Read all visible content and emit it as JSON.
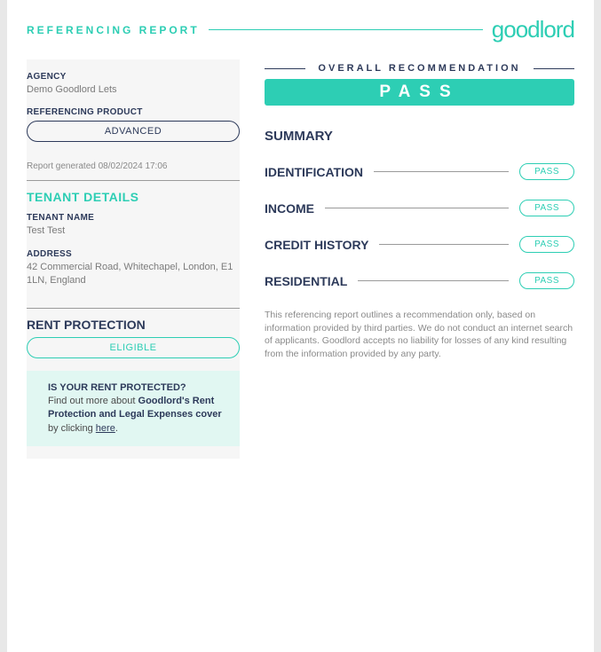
{
  "header": {
    "title": "REFERENCING REPORT",
    "logo": "goodlord"
  },
  "colors": {
    "accent": "#2dceb4",
    "dark": "#2d3a5a",
    "muted": "#8a8a8a",
    "bg_left": "#f6f6f6",
    "info_bg": "#e1f7f2"
  },
  "left": {
    "agency": {
      "label": "AGENCY",
      "value": "Demo Goodlord Lets"
    },
    "product": {
      "label": "REFERENCING PRODUCT",
      "value": "ADVANCED"
    },
    "generated": "Report generated 08/02/2024 17:06",
    "tenant_section": "TENANT DETAILS",
    "tenant_name": {
      "label": "TENANT NAME",
      "value": "Test Test"
    },
    "address": {
      "label": "ADDRESS",
      "value": "42 Commercial Road, Whitechapel, London, E1 1LN, England"
    },
    "rent_protection": {
      "title": "RENT PROTECTION",
      "status": "ELIGIBLE"
    },
    "info": {
      "question": "IS YOUR RENT PROTECTED?",
      "line1": "Find out more about ",
      "bold": "Goodlord's Rent Protection and Legal Expenses cover",
      "line2": " by clicking ",
      "link": "here",
      "tail": "."
    }
  },
  "right": {
    "overall": {
      "title": "OVERALL RECOMMENDATION",
      "result": "PASS"
    },
    "summary_title": "SUMMARY",
    "rows": [
      {
        "label": "IDENTIFICATION",
        "status": "PASS"
      },
      {
        "label": "INCOME",
        "status": "PASS"
      },
      {
        "label": "CREDIT HISTORY",
        "status": "PASS"
      },
      {
        "label": "RESIDENTIAL",
        "status": "PASS"
      }
    ],
    "disclaimer": "This referencing report outlines a recommendation only, based on information provided by third parties. We do not conduct an internet search of applicants. Goodlord accepts no liability for losses of any kind resulting from the information provided by any party."
  }
}
